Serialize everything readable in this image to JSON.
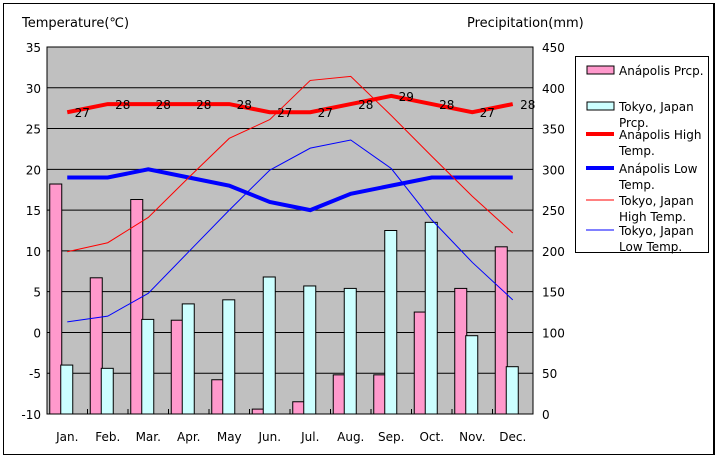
{
  "chart_data": {
    "type": "bar+line",
    "left_axis": {
      "label": "Temperature(℃)",
      "range": [
        -10,
        35
      ],
      "ticks": [
        "35",
        "30",
        "25",
        "20",
        "15",
        "10",
        "5",
        "0",
        "-5",
        "-10"
      ]
    },
    "right_axis": {
      "label": "Precipitation(mm)",
      "range": [
        0,
        450
      ],
      "ticks": [
        "450",
        "400",
        "350",
        "300",
        "250",
        "200",
        "150",
        "100",
        "50",
        "0"
      ]
    },
    "categories": [
      "Jan.",
      "Feb.",
      "Mar.",
      "Apr.",
      "May",
      "Jun.",
      "Jul.",
      "Aug.",
      "Sep.",
      "Oct.",
      "Nov.",
      "Dec."
    ],
    "grid": true,
    "legend_position": "right",
    "series": [
      {
        "name": "Anápolis Prcp.",
        "kind": "bar",
        "axis": "right",
        "color": "#ff99cc",
        "values": [
          282,
          167,
          263,
          115,
          42,
          6,
          15,
          48,
          48,
          125,
          154,
          205
        ]
      },
      {
        "name": "Tokyo, Japan Prcp.",
        "kind": "bar",
        "axis": "right",
        "color": "#ccffff",
        "values": [
          60,
          56,
          116,
          135,
          140,
          168,
          157,
          154,
          225,
          235,
          96,
          58
        ]
      },
      {
        "name": "Anápolis High Temp.",
        "kind": "line",
        "axis": "left",
        "color": "#ff0000",
        "width": 4,
        "values": [
          27,
          28,
          28,
          28,
          28,
          27,
          27,
          28,
          29,
          28,
          27,
          28
        ],
        "labels": [
          "27",
          "28",
          "28",
          "28",
          "28",
          "27",
          "27",
          "28",
          "29",
          "28",
          "27",
          "28"
        ]
      },
      {
        "name": "Anápolis Low Temp.",
        "kind": "line",
        "axis": "left",
        "color": "#0000ff",
        "width": 4,
        "values": [
          19,
          19,
          20,
          19,
          18,
          16,
          15,
          17,
          18,
          19,
          19,
          19
        ]
      },
      {
        "name": "Tokyo, Japan High Temp.",
        "kind": "line",
        "axis": "left",
        "color": "#ff0000",
        "width": 1,
        "values": [
          9.9,
          11.0,
          14.1,
          19.0,
          23.8,
          26.1,
          30.9,
          31.4,
          26.6,
          21.6,
          16.7,
          12.2
        ]
      },
      {
        "name": "Tokyo, Japan Low Temp.",
        "kind": "line",
        "axis": "left",
        "color": "#0000ff",
        "width": 1,
        "values": [
          1.3,
          2.0,
          4.8,
          9.9,
          15.0,
          19.9,
          22.6,
          23.6,
          20.1,
          13.8,
          8.6,
          4.0
        ]
      }
    ],
    "legend": [
      [
        "Anápolis Prcp."
      ],
      [
        "Tokyo, Japan",
        "Prcp."
      ],
      [
        "Anápolis High",
        "Temp."
      ],
      [
        "Anápolis Low",
        "Temp."
      ],
      [
        "Tokyo, Japan",
        "High Temp."
      ],
      [
        "Tokyo, Japan",
        "Low Temp."
      ]
    ]
  }
}
